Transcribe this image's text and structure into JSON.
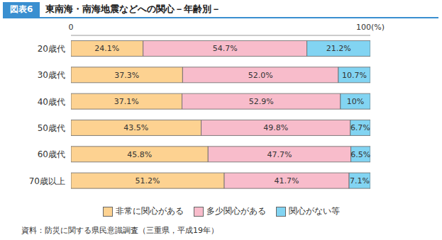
{
  "chart_data": {
    "type": "bar",
    "figure_label": "図表6",
    "title": "東南海・南海地震などへの関心－年齢別－",
    "source": "資料：防災に関する県民意識調査（三重県，平成19年）",
    "orientation": "horizontal",
    "stacked": true,
    "data_labels": true,
    "grid": false,
    "legend": "bottom",
    "categories": [
      "20歳代",
      "30歳代",
      "40歳代",
      "50歳代",
      "60歳代",
      "70歳以上"
    ],
    "xlim": [
      0,
      100
    ],
    "xticks": [
      0,
      {
        "value": 100,
        "label": "100(%)"
      }
    ],
    "series": [
      {
        "name": "非常に関心がある",
        "color": "#fdd291",
        "values": [
          24.1,
          37.3,
          37.1,
          43.5,
          45.8,
          51.2
        ],
        "value_labels": [
          "24.1%",
          "37.3%",
          "37.1%",
          "43.5%",
          "45.8%",
          "51.2%"
        ]
      },
      {
        "name": "多少関心がある",
        "color": "#f8bccb",
        "values": [
          54.7,
          52.0,
          52.9,
          49.8,
          47.7,
          41.7
        ],
        "value_labels": [
          "54.7%",
          "52.0%",
          "52.9%",
          "49.8%",
          "47.7%",
          "41.7%"
        ]
      },
      {
        "name": "関心がない等",
        "color": "#82d4f2",
        "values": [
          21.2,
          10.7,
          10,
          6.7,
          6.5,
          7.1
        ],
        "value_labels": [
          "21.2%",
          "10.7%",
          "10%",
          "6.7%",
          "6.5%",
          "7.1%"
        ]
      }
    ]
  }
}
